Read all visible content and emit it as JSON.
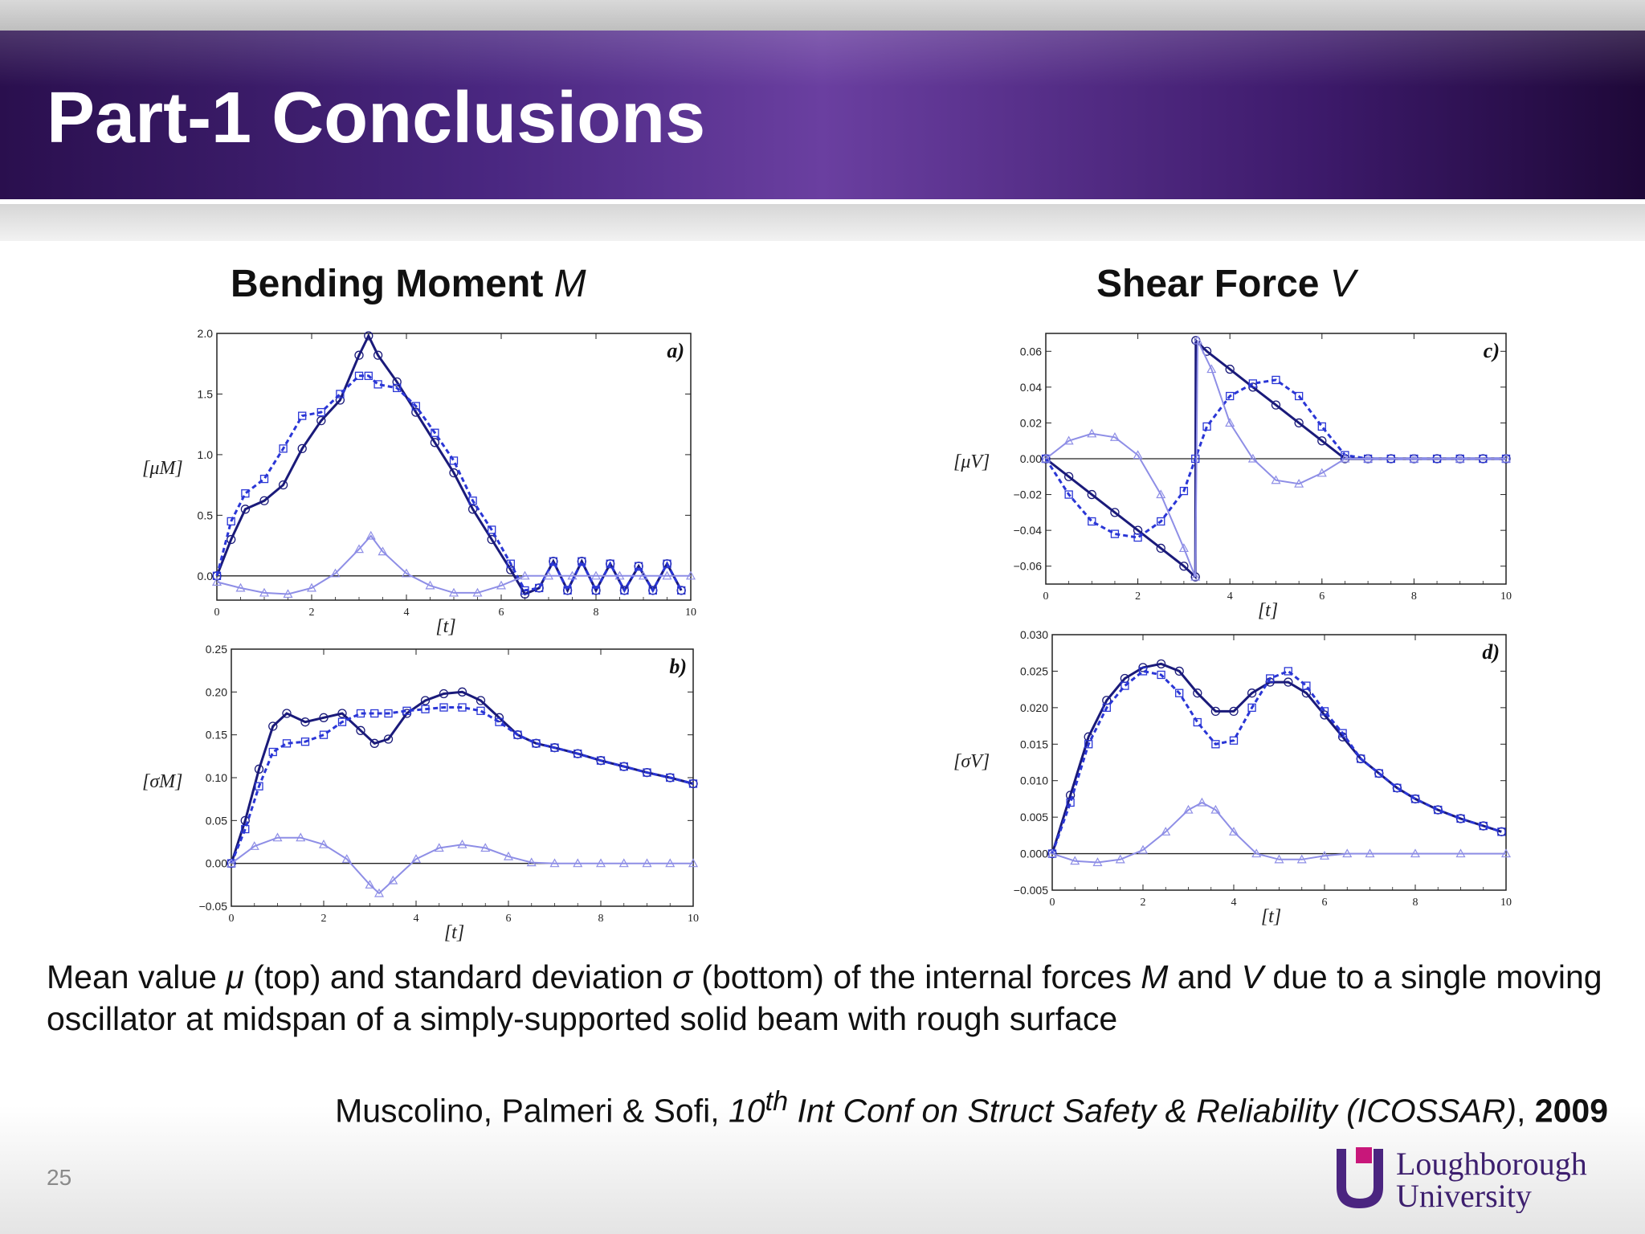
{
  "slide": {
    "title": "Part-1 Conclusions",
    "page_number": "25",
    "heading_left": {
      "text": "Bending Moment ",
      "var": "M"
    },
    "heading_right": {
      "text": "Shear Force ",
      "var": "V"
    },
    "caption": {
      "p1": "Mean value ",
      "mu": "μ",
      "p2": " (top) and standard deviation ",
      "sigma": "σ",
      "p3": " (bottom) of the internal forces ",
      "m": "M",
      "p4": " and ",
      "v": "V",
      "p5": " due to a single moving oscillator at midspan of a simply-supported solid beam with rough surface"
    },
    "citation": {
      "authors": "Muscolino, Palmeri & Sofi, ",
      "edition": "10",
      "edition_sup": "th",
      "venue": " Int Conf on Struct Safety & Reliability (ICOSSAR)",
      "sep": ", ",
      "year": "2009"
    },
    "logo": {
      "line1": "Loughborough",
      "line2": "University",
      "color": "#c8177a"
    },
    "colors": {
      "solid": "#1a1a7a",
      "dashed": "#2a36d6",
      "light": "#8e8ee6"
    }
  },
  "chart_data": [
    {
      "id": "a",
      "panel_label": "a)",
      "type": "line",
      "ylabel": "[μM]",
      "xlabel": "[t]",
      "xlim": [
        0,
        10
      ],
      "ylim": [
        -0.2,
        2.0
      ],
      "xticks": [
        "0",
        "2",
        "4",
        "6",
        "8",
        "10"
      ],
      "xtick_values": [
        0,
        2,
        4,
        6,
        8,
        10
      ],
      "yticks": [
        "0.0",
        "0.5",
        "1.0",
        "1.5",
        "2.0"
      ],
      "ytick_values": [
        0,
        0.5,
        1.0,
        1.5,
        2.0
      ],
      "series": [
        {
          "style": "solid",
          "marker": "circle",
          "x": [
            0,
            0.3,
            0.6,
            1.0,
            1.4,
            1.8,
            2.2,
            2.6,
            3.0,
            3.2,
            3.4,
            3.8,
            4.2,
            4.6,
            5.0,
            5.4,
            5.8,
            6.2,
            6.5,
            6.8,
            7.1,
            7.4,
            7.7,
            8.0,
            8.3,
            8.6,
            8.9,
            9.2,
            9.5,
            9.8
          ],
          "y": [
            0,
            0.3,
            0.55,
            0.62,
            0.75,
            1.05,
            1.28,
            1.45,
            1.82,
            1.98,
            1.82,
            1.6,
            1.35,
            1.1,
            0.85,
            0.55,
            0.3,
            0.05,
            -0.15,
            -0.1,
            0.12,
            -0.12,
            0.12,
            -0.12,
            0.1,
            -0.12,
            0.08,
            -0.12,
            0.1,
            -0.12
          ]
        },
        {
          "style": "dashed",
          "marker": "square",
          "x": [
            0,
            0.3,
            0.6,
            1.0,
            1.4,
            1.8,
            2.2,
            2.6,
            3.0,
            3.2,
            3.4,
            3.8,
            4.2,
            4.6,
            5.0,
            5.4,
            5.8,
            6.2,
            6.5,
            6.8,
            7.1,
            7.4,
            7.7,
            8.0,
            8.3,
            8.6,
            8.9,
            9.2,
            9.5,
            9.8
          ],
          "y": [
            0,
            0.45,
            0.68,
            0.8,
            1.05,
            1.32,
            1.35,
            1.5,
            1.65,
            1.65,
            1.58,
            1.55,
            1.4,
            1.18,
            0.95,
            0.62,
            0.38,
            0.1,
            -0.12,
            -0.1,
            0.12,
            -0.12,
            0.12,
            -0.12,
            0.1,
            -0.12,
            0.08,
            -0.12,
            0.1,
            -0.12
          ]
        },
        {
          "style": "light",
          "marker": "triangle",
          "x": [
            0,
            0.5,
            1.0,
            1.5,
            2.0,
            2.5,
            3.0,
            3.25,
            3.5,
            4.0,
            4.5,
            5.0,
            5.5,
            6.0,
            6.5,
            7.0,
            7.5,
            8.0,
            8.5,
            9.0,
            9.5,
            10.0
          ],
          "y": [
            -0.05,
            -0.1,
            -0.14,
            -0.15,
            -0.1,
            0.02,
            0.22,
            0.33,
            0.2,
            0.02,
            -0.08,
            -0.14,
            -0.14,
            -0.08,
            0.0,
            0.0,
            0.0,
            0.0,
            0.0,
            0.0,
            0.0,
            0.0
          ]
        }
      ]
    },
    {
      "id": "b",
      "panel_label": "b)",
      "type": "line",
      "ylabel": "[σM]",
      "xlabel": "[t]",
      "xlim": [
        0,
        10
      ],
      "ylim": [
        -0.05,
        0.25
      ],
      "xticks": [
        "0",
        "2",
        "4",
        "6",
        "8",
        "10"
      ],
      "xtick_values": [
        0,
        2,
        4,
        6,
        8,
        10
      ],
      "yticks": [
        "−0.05",
        "0.00",
        "0.05",
        "0.10",
        "0.15",
        "0.20",
        "0.25"
      ],
      "ytick_values": [
        -0.05,
        0,
        0.05,
        0.1,
        0.15,
        0.2,
        0.25
      ],
      "series": [
        {
          "style": "solid",
          "marker": "circle",
          "x": [
            0,
            0.3,
            0.6,
            0.9,
            1.2,
            1.6,
            2.0,
            2.4,
            2.8,
            3.1,
            3.4,
            3.8,
            4.2,
            4.6,
            5.0,
            5.4,
            5.8,
            6.2,
            6.6,
            7.0,
            7.5,
            8.0,
            8.5,
            9.0,
            9.5,
            10.0
          ],
          "y": [
            0,
            0.05,
            0.11,
            0.16,
            0.175,
            0.165,
            0.17,
            0.175,
            0.155,
            0.14,
            0.145,
            0.175,
            0.19,
            0.198,
            0.2,
            0.19,
            0.17,
            0.15,
            0.14,
            0.135,
            0.128,
            0.12,
            0.113,
            0.106,
            0.1,
            0.093
          ]
        },
        {
          "style": "dashed",
          "marker": "square",
          "x": [
            0,
            0.3,
            0.6,
            0.9,
            1.2,
            1.6,
            2.0,
            2.4,
            2.8,
            3.1,
            3.4,
            3.8,
            4.2,
            4.6,
            5.0,
            5.4,
            5.8,
            6.2,
            6.6,
            7.0,
            7.5,
            8.0,
            8.5,
            9.0,
            9.5,
            10.0
          ],
          "y": [
            0,
            0.04,
            0.09,
            0.13,
            0.14,
            0.142,
            0.15,
            0.165,
            0.175,
            0.175,
            0.175,
            0.178,
            0.18,
            0.182,
            0.182,
            0.178,
            0.165,
            0.15,
            0.14,
            0.135,
            0.128,
            0.12,
            0.113,
            0.106,
            0.1,
            0.093
          ]
        },
        {
          "style": "light",
          "marker": "triangle",
          "x": [
            0,
            0.5,
            1.0,
            1.5,
            2.0,
            2.5,
            3.0,
            3.2,
            3.5,
            4.0,
            4.5,
            5.0,
            5.5,
            6.0,
            6.5,
            7.0,
            7.5,
            8.0,
            8.5,
            9.0,
            9.5,
            10.0
          ],
          "y": [
            0,
            0.02,
            0.03,
            0.03,
            0.022,
            0.005,
            -0.025,
            -0.035,
            -0.02,
            0.005,
            0.018,
            0.022,
            0.018,
            0.008,
            0.001,
            0.0,
            0.0,
            0.0,
            0.0,
            0.0,
            0.0,
            0.0
          ]
        }
      ]
    },
    {
      "id": "c",
      "panel_label": "c)",
      "type": "line",
      "ylabel": "[μV]",
      "xlabel": "[t]",
      "xlim": [
        0,
        10
      ],
      "ylim": [
        -0.07,
        0.07
      ],
      "xticks": [
        "0",
        "2",
        "4",
        "6",
        "8",
        "10"
      ],
      "xtick_values": [
        0,
        2,
        4,
        6,
        8,
        10
      ],
      "yticks": [
        "−0.06",
        "−0.04",
        "−0.02",
        "0.00",
        "0.02",
        "0.04",
        "0.06"
      ],
      "ytick_values": [
        -0.06,
        -0.04,
        -0.02,
        0,
        0.02,
        0.04,
        0.06
      ],
      "series": [
        {
          "style": "solid",
          "marker": "circle",
          "x": [
            0,
            0.5,
            1.0,
            1.5,
            2.0,
            2.5,
            3.0,
            3.25,
            3.26,
            3.5,
            4.0,
            4.5,
            5.0,
            5.5,
            6.0,
            6.5,
            7.0,
            7.5,
            8.0,
            8.5,
            9.0,
            9.5,
            10.0
          ],
          "y": [
            0,
            -0.01,
            -0.02,
            -0.03,
            -0.04,
            -0.05,
            -0.06,
            -0.066,
            0.066,
            0.06,
            0.05,
            0.04,
            0.03,
            0.02,
            0.01,
            0.0,
            0.0,
            0.0,
            0.0,
            0.0,
            0.0,
            0.0,
            0.0
          ]
        },
        {
          "style": "dashed",
          "marker": "square",
          "x": [
            0,
            0.5,
            1.0,
            1.5,
            2.0,
            2.5,
            3.0,
            3.25,
            3.5,
            4.0,
            4.5,
            5.0,
            5.5,
            6.0,
            6.5,
            7.0,
            7.5,
            8.0,
            8.5,
            9.0,
            9.5,
            10.0
          ],
          "y": [
            0,
            -0.02,
            -0.035,
            -0.042,
            -0.044,
            -0.035,
            -0.018,
            0.0,
            0.018,
            0.035,
            0.042,
            0.044,
            0.035,
            0.018,
            0.002,
            0.0,
            0.0,
            0.0,
            0.0,
            0.0,
            0.0,
            0.0
          ]
        },
        {
          "style": "light",
          "marker": "triangle",
          "x": [
            0,
            0.5,
            1.0,
            1.5,
            2.0,
            2.5,
            3.0,
            3.25,
            3.3,
            3.6,
            4.0,
            4.5,
            5.0,
            5.5,
            6.0,
            6.5,
            7.0,
            8.0,
            9.0,
            10.0
          ],
          "y": [
            0,
            0.01,
            0.014,
            0.012,
            0.002,
            -0.02,
            -0.05,
            -0.066,
            0.066,
            0.05,
            0.02,
            0.0,
            -0.012,
            -0.014,
            -0.008,
            0.0,
            0.0,
            0.0,
            0.0,
            0.0
          ]
        }
      ]
    },
    {
      "id": "d",
      "panel_label": "d)",
      "type": "line",
      "ylabel": "[σV]",
      "xlabel": "[t]",
      "xlim": [
        0,
        10
      ],
      "ylim": [
        -0.005,
        0.03
      ],
      "xticks": [
        "0",
        "2",
        "4",
        "6",
        "8",
        "10"
      ],
      "xtick_values": [
        0,
        2,
        4,
        6,
        8,
        10
      ],
      "yticks": [
        "−0.005",
        "0.000",
        "0.005",
        "0.010",
        "0.015",
        "0.020",
        "0.025",
        "0.030"
      ],
      "ytick_values": [
        -0.005,
        0,
        0.005,
        0.01,
        0.015,
        0.02,
        0.025,
        0.03
      ],
      "series": [
        {
          "style": "solid",
          "marker": "circle",
          "x": [
            0,
            0.4,
            0.8,
            1.2,
            1.6,
            2.0,
            2.4,
            2.8,
            3.2,
            3.6,
            4.0,
            4.4,
            4.8,
            5.2,
            5.6,
            6.0,
            6.4,
            6.8,
            7.2,
            7.6,
            8.0,
            8.5,
            9.0,
            9.5,
            9.9
          ],
          "y": [
            0,
            0.008,
            0.016,
            0.021,
            0.024,
            0.0255,
            0.026,
            0.025,
            0.022,
            0.0195,
            0.0195,
            0.022,
            0.0235,
            0.0235,
            0.022,
            0.019,
            0.016,
            0.013,
            0.011,
            0.009,
            0.0075,
            0.006,
            0.0048,
            0.0038,
            0.003
          ]
        },
        {
          "style": "dashed",
          "marker": "square",
          "x": [
            0,
            0.4,
            0.8,
            1.2,
            1.6,
            2.0,
            2.4,
            2.8,
            3.2,
            3.6,
            4.0,
            4.4,
            4.8,
            5.2,
            5.6,
            6.0,
            6.4,
            6.8,
            7.2,
            7.6,
            8.0,
            8.5,
            9.0,
            9.5,
            9.9
          ],
          "y": [
            0,
            0.007,
            0.015,
            0.02,
            0.023,
            0.025,
            0.0245,
            0.022,
            0.018,
            0.015,
            0.0155,
            0.02,
            0.024,
            0.025,
            0.023,
            0.0195,
            0.0165,
            0.013,
            0.011,
            0.009,
            0.0075,
            0.006,
            0.0048,
            0.0038,
            0.003
          ]
        },
        {
          "style": "light",
          "marker": "triangle",
          "x": [
            0,
            0.5,
            1.0,
            1.5,
            2.0,
            2.5,
            3.0,
            3.3,
            3.6,
            4.0,
            4.5,
            5.0,
            5.5,
            6.0,
            6.5,
            7.0,
            8.0,
            9.0,
            10.0
          ],
          "y": [
            0,
            -0.001,
            -0.0012,
            -0.0008,
            0.0005,
            0.003,
            0.006,
            0.007,
            0.006,
            0.003,
            0.0,
            -0.0008,
            -0.0008,
            -0.0003,
            0.0,
            0.0,
            0.0,
            0.0,
            0.0
          ]
        }
      ]
    }
  ]
}
